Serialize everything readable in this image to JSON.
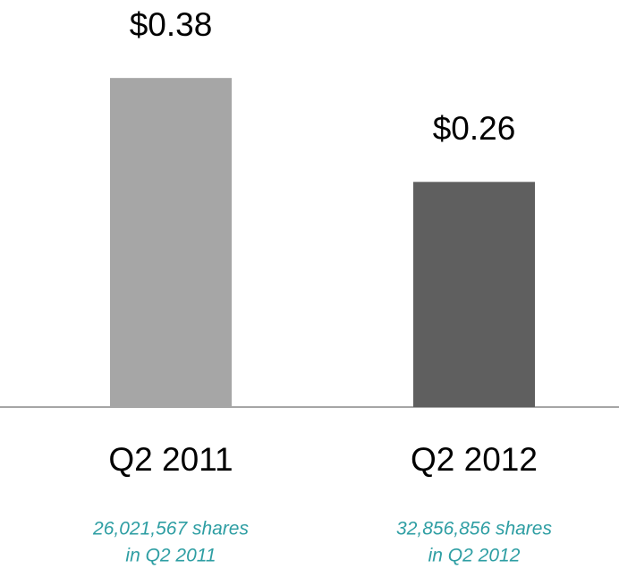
{
  "chart_data": {
    "type": "bar",
    "categories": [
      "Q2 2011",
      "Q2 2012"
    ],
    "values": [
      0.38,
      0.26
    ],
    "value_labels": [
      "$0.38",
      "$0.26"
    ],
    "colors": [
      "#a6a6a6",
      "#5f5f5f"
    ],
    "annotations": [
      [
        "26,021,567 shares",
        "in Q2 2011"
      ],
      [
        "32,856,856 shares",
        "in Q2 2012"
      ]
    ],
    "annotation_color": "#2e9ea3"
  }
}
